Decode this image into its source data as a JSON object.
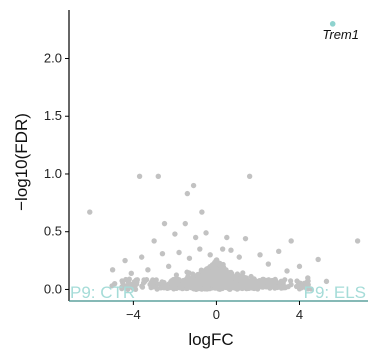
{
  "chart_data": {
    "type": "scatter",
    "xlabel": "logFC",
    "ylabel": "−log10(FDR)",
    "xlim": [
      -7.1,
      7.3
    ],
    "ylim": [
      -0.1,
      2.42
    ],
    "x_ticks": [
      {
        "value": -4,
        "label": "−4"
      },
      {
        "value": 0,
        "label": "0"
      },
      {
        "value": 4,
        "label": "4"
      }
    ],
    "y_ticks": [
      {
        "value": 0,
        "label": "0.0"
      },
      {
        "value": 0.5,
        "label": "0.5"
      },
      {
        "value": 1.0,
        "label": "1.0"
      },
      {
        "value": 1.5,
        "label": "1.5"
      },
      {
        "value": 2.0,
        "label": "2.0"
      }
    ],
    "grid": false,
    "group_labels": [
      {
        "text": "P9: CTR",
        "position": "bottom-left"
      },
      {
        "text": "P9: ELS",
        "position": "bottom-right"
      }
    ],
    "highlight": {
      "gene": "Trem1",
      "x": 5.6,
      "y": 2.3
    },
    "colors": {
      "background_points": "#c2c2c2",
      "highlight": "#8fd3cf",
      "group_label": "#a5dcd8",
      "axis": "#000000",
      "baseline": "#3e8f8a"
    },
    "points": [
      {
        "x": -6.1,
        "y": 0.67
      },
      {
        "x": -5.0,
        "y": 0.17
      },
      {
        "x": -4.9,
        "y": 0.05
      },
      {
        "x": -4.4,
        "y": 0.25
      },
      {
        "x": -4.1,
        "y": 0.14
      },
      {
        "x": -3.7,
        "y": 0.98
      },
      {
        "x": -3.6,
        "y": 0.28
      },
      {
        "x": -3.3,
        "y": 0.17
      },
      {
        "x": -3.0,
        "y": 0.42
      },
      {
        "x": -2.8,
        "y": 0.98
      },
      {
        "x": -2.6,
        "y": 0.31
      },
      {
        "x": -2.5,
        "y": 0.57
      },
      {
        "x": -2.3,
        "y": 0.2
      },
      {
        "x": -2.0,
        "y": 0.48
      },
      {
        "x": -1.8,
        "y": 0.32
      },
      {
        "x": -1.5,
        "y": 0.57
      },
      {
        "x": -1.4,
        "y": 0.83
      },
      {
        "x": -1.3,
        "y": 0.27
      },
      {
        "x": -1.1,
        "y": 0.9
      },
      {
        "x": -1.0,
        "y": 0.45
      },
      {
        "x": -0.8,
        "y": 0.35
      },
      {
        "x": -0.7,
        "y": 0.67
      },
      {
        "x": -0.5,
        "y": 0.49
      },
      {
        "x": -0.3,
        "y": 0.3
      },
      {
        "x": 0.3,
        "y": 0.35
      },
      {
        "x": 0.5,
        "y": 0.45
      },
      {
        "x": 0.7,
        "y": 0.34
      },
      {
        "x": 1.1,
        "y": 0.28
      },
      {
        "x": 1.4,
        "y": 0.44
      },
      {
        "x": 1.6,
        "y": 0.98
      },
      {
        "x": 2.1,
        "y": 0.3
      },
      {
        "x": 2.5,
        "y": 0.22
      },
      {
        "x": 3.0,
        "y": 0.33
      },
      {
        "x": 3.4,
        "y": 0.16
      },
      {
        "x": 3.6,
        "y": 0.42
      },
      {
        "x": 4.0,
        "y": 0.2
      },
      {
        "x": 4.4,
        "y": 0.1
      },
      {
        "x": 4.9,
        "y": 0.26
      },
      {
        "x": 5.3,
        "y": 0.07
      },
      {
        "x": 6.8,
        "y": 0.42
      }
    ]
  }
}
